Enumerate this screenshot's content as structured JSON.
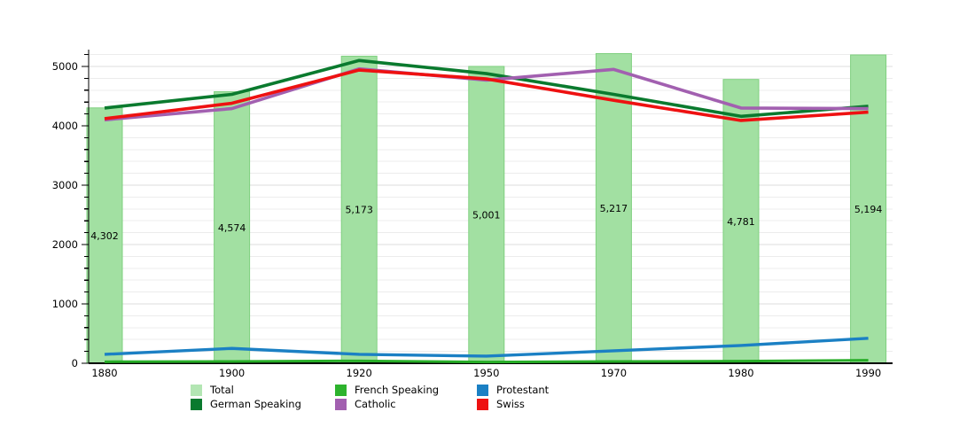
{
  "chart_data": {
    "type": "bar+line",
    "title": "",
    "categories": [
      "1880",
      "1900",
      "1920",
      "1950",
      "1970",
      "1980",
      "1990"
    ],
    "bars": {
      "name": "Total",
      "color": "#a2e0a2",
      "border_color": "#7fd07f",
      "values": [
        4302,
        4574,
        5173,
        5001,
        5217,
        4781,
        5194
      ],
      "labels": [
        "4,302",
        "4,574",
        "5,173",
        "5,001",
        "5,217",
        "4,781",
        "5,194"
      ]
    },
    "lines": [
      {
        "name": "Protestant",
        "color": "#1b80c4",
        "width": 3.4,
        "values": [
          150,
          250,
          150,
          120,
          210,
          300,
          420
        ]
      },
      {
        "name": "French Speaking",
        "color": "#27ad27",
        "width": 3.0,
        "values": [
          25,
          30,
          40,
          20,
          30,
          35,
          50
        ]
      },
      {
        "name": "German Speaking",
        "color": "#0a7a2e",
        "width": 3.6,
        "values": [
          4300,
          4530,
          5100,
          4880,
          4530,
          4160,
          4330
        ]
      },
      {
        "name": "Catholic",
        "color": "#a260b0",
        "width": 3.6,
        "values": [
          4100,
          4290,
          4960,
          4770,
          4950,
          4300,
          4290
        ]
      },
      {
        "name": "Swiss",
        "color": "#ee1111",
        "width": 3.6,
        "values": [
          4120,
          4380,
          4940,
          4790,
          4430,
          4090,
          4230
        ]
      }
    ],
    "y_axis": {
      "min": 0,
      "max": 5300,
      "major_tick_step": 1000,
      "minor_tick_step": 200,
      "major_labels": [
        "0",
        "1000",
        "2000",
        "3000",
        "4000",
        "5000"
      ]
    },
    "x_axis": {
      "labels": [
        "1880",
        "1900",
        "1920",
        "1950",
        "1970",
        "1980",
        "1990"
      ]
    },
    "grid": true,
    "grid_minor_color": "#ececec",
    "grid_major_color": "#dcdcdc",
    "axis_color": "#000000",
    "legend_position": "bottom"
  },
  "legend": {
    "columns": 3,
    "items": [
      {
        "label": "Total",
        "color": "#b3e6b3"
      },
      {
        "label": "French Speaking",
        "color": "#2db32d"
      },
      {
        "label": "Protestant",
        "color": "#1b80c4"
      },
      {
        "label": "German Speaking",
        "color": "#0a7a2e"
      },
      {
        "label": "Catholic",
        "color": "#a260b0"
      },
      {
        "label": "Swiss",
        "color": "#ee1111"
      }
    ]
  }
}
